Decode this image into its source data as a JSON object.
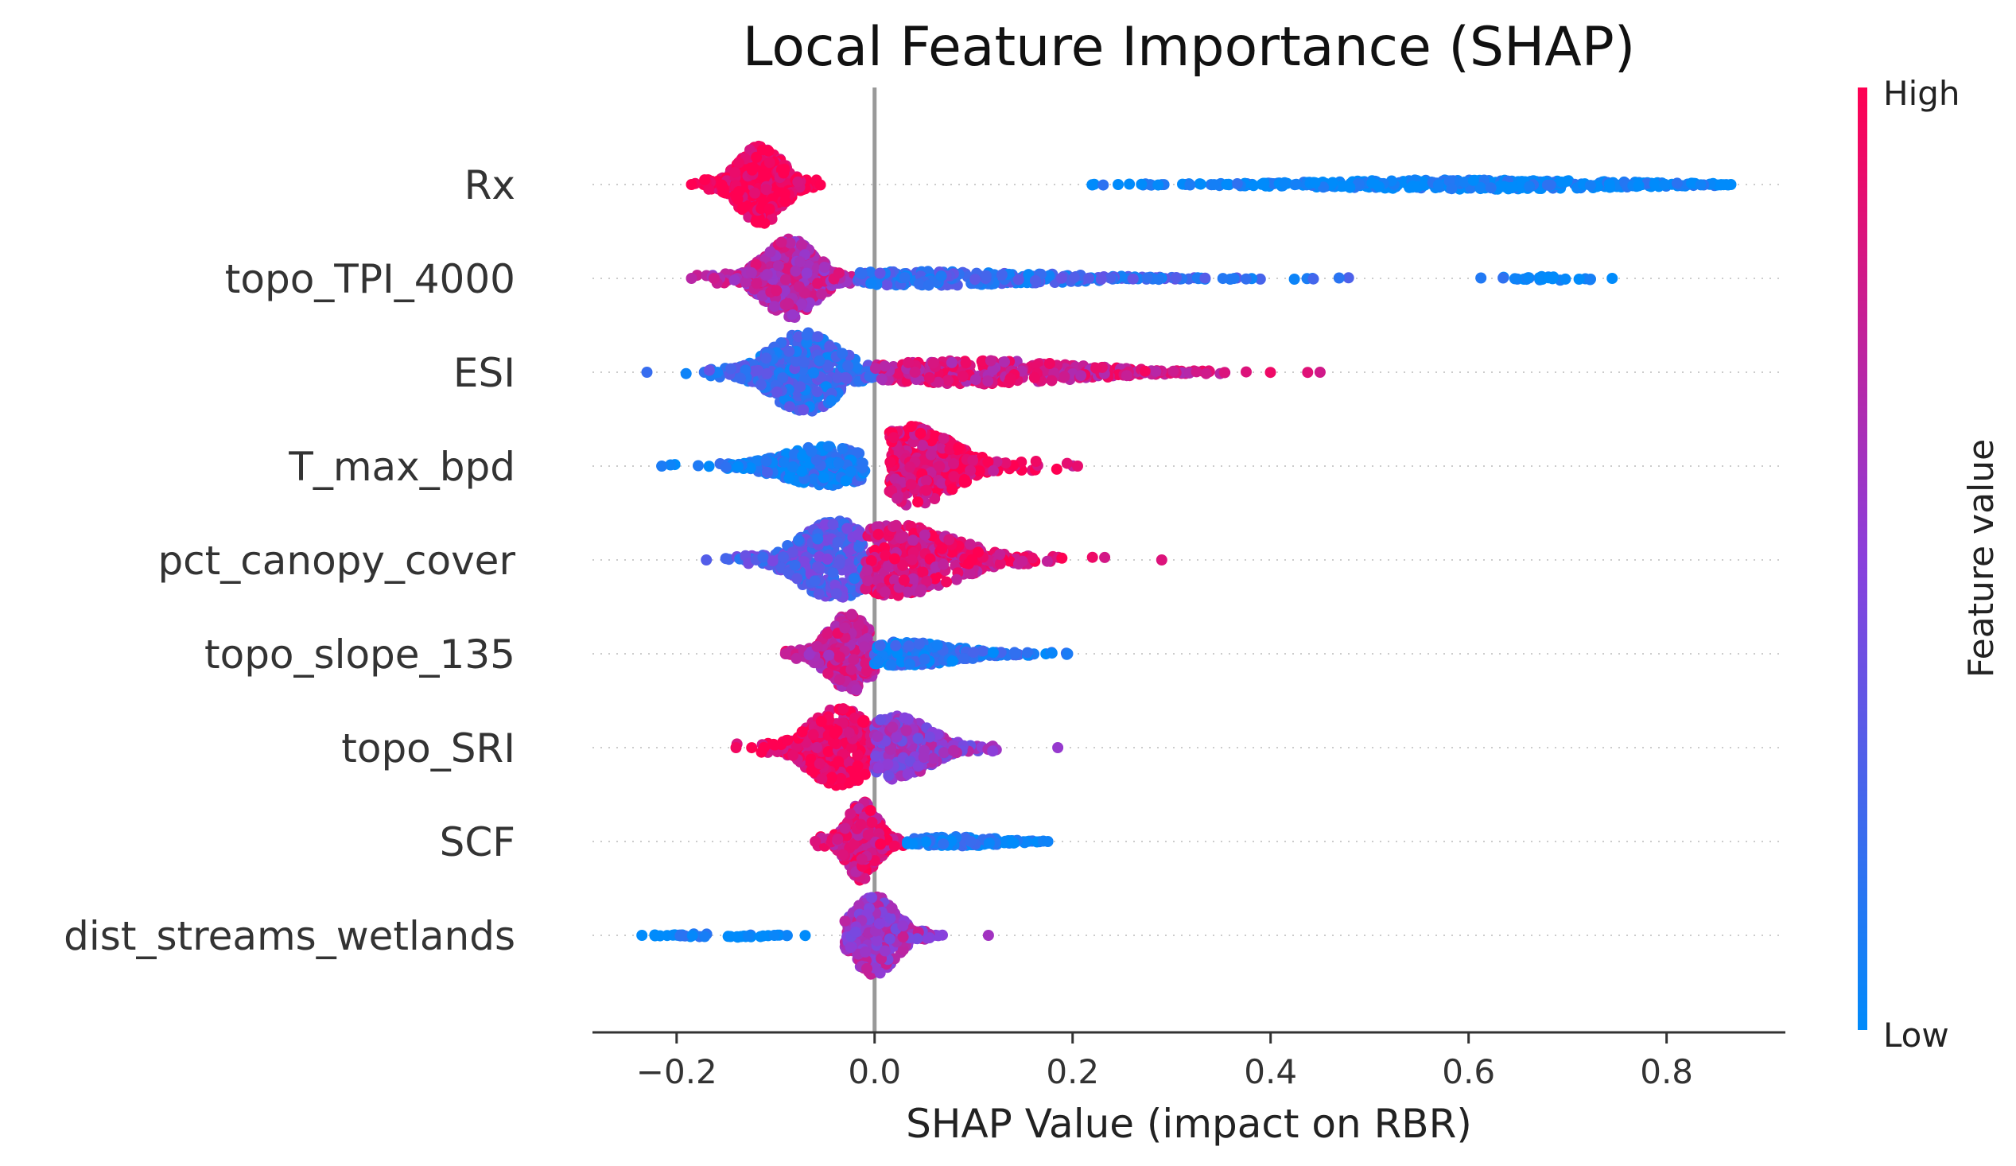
{
  "chart_data": {
    "type": "scatter",
    "title": "Local Feature Importance (SHAP)",
    "xlabel": "SHAP Value (impact on RBR)",
    "ylabel": "",
    "xlim": [
      -0.285,
      0.92
    ],
    "xticks": [
      -0.2,
      0.0,
      0.2,
      0.4,
      0.6,
      0.8
    ],
    "xtick_labels": [
      "−0.2",
      "0.0",
      "0.2",
      "0.4",
      "0.6",
      "0.8"
    ],
    "zero_line": 0.0,
    "grid": false,
    "colorbar": {
      "label": "Feature value",
      "high_label": "High",
      "low_label": "Low",
      "low_color": "#008bfb",
      "mid_color": "#8a3fdc",
      "high_color": "#ff0052"
    },
    "features": [
      {
        "name": "Rx",
        "range": [
          -0.185,
          0.865
        ],
        "mode": [
          -0.12,
          0.035
        ],
        "groups": [
          {
            "from": -0.185,
            "to": -0.02,
            "center": -0.115,
            "spread": 0.025,
            "color": 1.0,
            "n": 460,
            "height": 1.0
          },
          {
            "from": 0.21,
            "to": 0.865,
            "center": 0.6,
            "spread": 0.17,
            "color": 0.0,
            "n": 380,
            "height": 0.12
          }
        ]
      },
      {
        "name": "topo_TPI_4000",
        "range": [
          -0.185,
          0.745
        ],
        "mode": [
          -0.08,
          0.03
        ],
        "groups": [
          {
            "from": -0.185,
            "to": -0.02,
            "center": -0.085,
            "spread": 0.03,
            "color": 0.7,
            "n": 430,
            "height": 1.0
          },
          {
            "from": -0.02,
            "to": 0.48,
            "center": 0.05,
            "spread": 0.15,
            "color": 0.2,
            "n": 260,
            "height": 0.18
          },
          {
            "from": 0.61,
            "to": 0.745,
            "center": 0.68,
            "spread": 0.05,
            "color": 0.0,
            "n": 25,
            "height": 0.05
          }
        ]
      },
      {
        "name": "ESI",
        "range": [
          -0.23,
          0.45
        ],
        "mode": [
          -0.06,
          0.04
        ],
        "groups": [
          {
            "from": -0.23,
            "to": 0.0,
            "center": -0.07,
            "spread": 0.04,
            "color": 0.2,
            "n": 420,
            "height": 1.0
          },
          {
            "from": 0.0,
            "to": 0.45,
            "center": 0.1,
            "spread": 0.12,
            "color": 0.8,
            "n": 320,
            "height": 0.3
          }
        ]
      },
      {
        "name": "T_max_bpd",
        "range": [
          -0.215,
          0.205
        ],
        "mode": [
          -0.04,
          0.028
        ],
        "groups": [
          {
            "from": -0.215,
            "to": -0.01,
            "center": -0.05,
            "spread": 0.05,
            "color": 0.1,
            "n": 330,
            "height": 0.5
          },
          {
            "from": 0.015,
            "to": 0.205,
            "center": 0.035,
            "spread": 0.05,
            "color": 0.9,
            "n": 360,
            "height": 1.0
          }
        ]
      },
      {
        "name": "pct_canopy_cover",
        "range": [
          -0.17,
          0.29
        ],
        "mode": [
          -0.03,
          0.04
        ],
        "groups": [
          {
            "from": -0.17,
            "to": -0.01,
            "center": -0.04,
            "spread": 0.04,
            "color": 0.3,
            "n": 340,
            "height": 1.0
          },
          {
            "from": -0.01,
            "to": 0.29,
            "center": 0.02,
            "spread": 0.07,
            "color": 0.85,
            "n": 380,
            "height": 0.9
          }
        ]
      },
      {
        "name": "topo_slope_135",
        "range": [
          -0.09,
          0.195
        ],
        "mode": [
          -0.025,
          0.03
        ],
        "groups": [
          {
            "from": -0.09,
            "to": 0.0,
            "center": -0.025,
            "spread": 0.025,
            "color": 0.75,
            "n": 280,
            "height": 1.0
          },
          {
            "from": 0.0,
            "to": 0.195,
            "center": 0.03,
            "spread": 0.06,
            "color": 0.1,
            "n": 240,
            "height": 0.3
          }
        ]
      },
      {
        "name": "topo_SRI",
        "range": [
          -0.14,
          0.185
        ],
        "mode": [
          -0.02,
          0.035
        ],
        "groups": [
          {
            "from": -0.14,
            "to": 0.0,
            "center": -0.035,
            "spread": 0.035,
            "color": 0.95,
            "n": 340,
            "height": 1.0
          },
          {
            "from": 0.0,
            "to": 0.185,
            "center": 0.02,
            "spread": 0.04,
            "color": 0.55,
            "n": 300,
            "height": 0.8
          }
        ]
      },
      {
        "name": "SCF",
        "range": [
          -0.06,
          0.175
        ],
        "mode": [
          -0.01,
          0.03
        ],
        "groups": [
          {
            "from": -0.06,
            "to": 0.03,
            "center": -0.012,
            "spread": 0.018,
            "color": 0.85,
            "n": 280,
            "height": 1.0
          },
          {
            "from": 0.03,
            "to": 0.175,
            "center": 0.08,
            "spread": 0.05,
            "color": 0.05,
            "n": 150,
            "height": 0.12
          }
        ]
      },
      {
        "name": "dist_streams_wetlands",
        "range": [
          -0.235,
          0.115
        ],
        "mode": [
          -0.01,
          0.035
        ],
        "groups": [
          {
            "from": -0.235,
            "to": -0.06,
            "center": -0.15,
            "spread": 0.05,
            "color": 0.0,
            "n": 40,
            "height": 0.05
          },
          {
            "from": -0.03,
            "to": 0.115,
            "center": 0.0,
            "spread": 0.025,
            "color": 0.6,
            "n": 420,
            "height": 1.0
          }
        ]
      }
    ]
  }
}
